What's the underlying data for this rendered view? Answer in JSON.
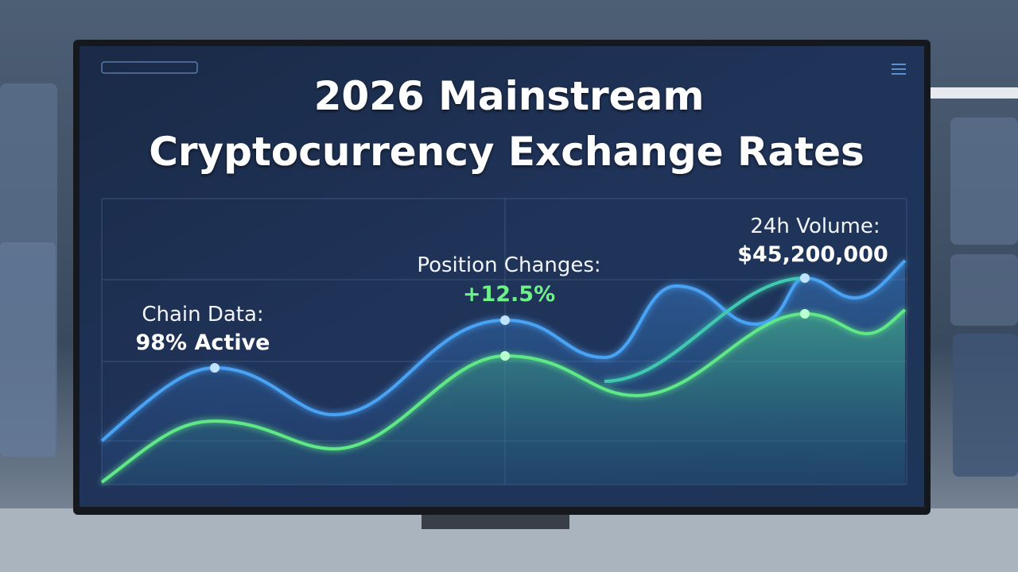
{
  "screen": {
    "title": [
      "2026 Mainstream",
      "Cryptocurrency Exchange Rates"
    ],
    "annotations": [
      {
        "label": "Chain Data:",
        "value": "98% Active"
      },
      {
        "label": "Position Changes:",
        "value": "+12.5%"
      },
      {
        "label": "24h Volume:",
        "value": "$45,200,000"
      }
    ]
  }
}
